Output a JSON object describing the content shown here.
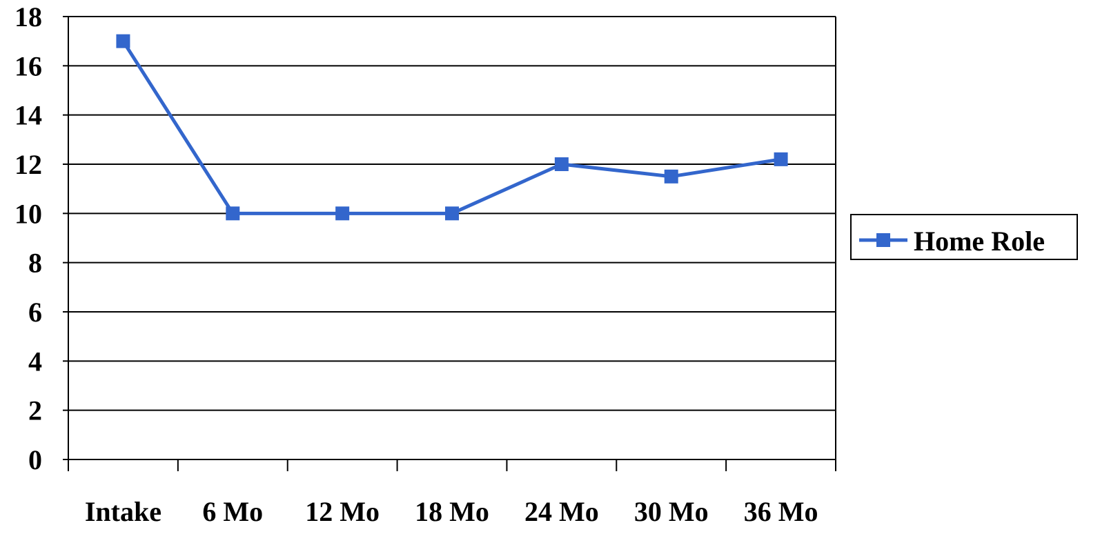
{
  "chart_data": {
    "type": "line",
    "categories": [
      "Intake",
      "6 Mo",
      "12 Mo",
      "18 Mo",
      "24 Mo",
      "30 Mo",
      "36 Mo"
    ],
    "series": [
      {
        "name": "Home Role",
        "values": [
          17,
          10,
          10,
          10,
          12,
          11.5,
          12.2
        ],
        "color": "#3366CC"
      }
    ],
    "ylim": [
      0,
      18
    ],
    "yticks": [
      0,
      2,
      4,
      6,
      8,
      10,
      12,
      14,
      16,
      18
    ],
    "grid": true,
    "legend_position": "right",
    "title": "",
    "xlabel": "",
    "ylabel": ""
  }
}
